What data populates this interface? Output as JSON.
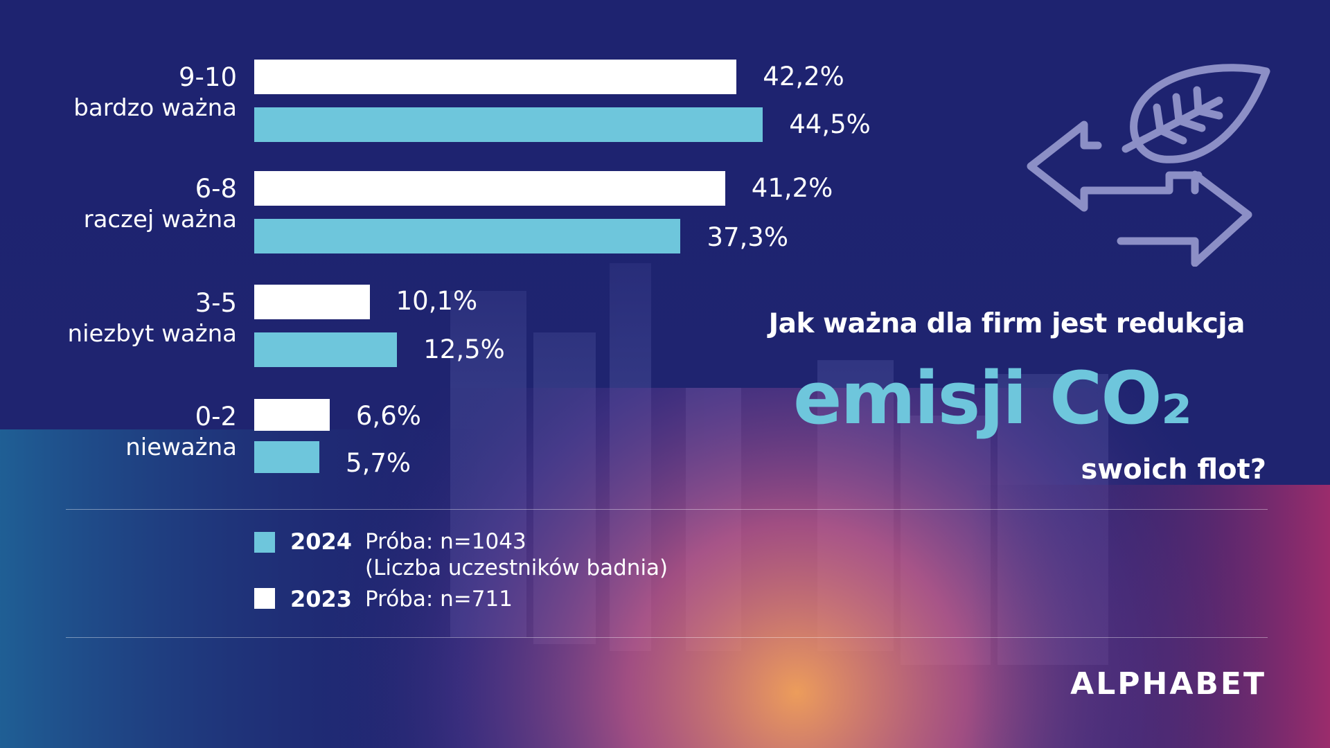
{
  "chart_data": {
    "type": "bar",
    "orientation": "horizontal",
    "categories": [
      {
        "range": "9-10",
        "label": "bardzo ważna"
      },
      {
        "range": "6-8",
        "label": "raczej ważna"
      },
      {
        "range": "3-5",
        "label": "niezbyt ważna"
      },
      {
        "range": "0-2",
        "label": "nieważna"
      }
    ],
    "series": [
      {
        "name": "2023",
        "color": "#ffffff",
        "values": [
          42.2,
          41.2,
          10.1,
          6.6
        ],
        "labels": [
          "42,2%",
          "41,2%",
          "10,1%",
          "6,6%"
        ]
      },
      {
        "name": "2024",
        "color": "#6ec6dc",
        "values": [
          44.5,
          37.3,
          12.5,
          5.7
        ],
        "labels": [
          "44,5%",
          "37,3%",
          "12,5%",
          "5,7%"
        ]
      }
    ],
    "title": {
      "line1": "Jak ważna dla firm jest redukcja",
      "line2": "emisji CO₂",
      "line3": "swoich flot?"
    },
    "xlim": [
      0,
      50
    ]
  },
  "legend": [
    {
      "year": "2024",
      "text1": "Próba: n=1043",
      "text2": "(Liczba uczestników badnia)",
      "color": "#6ec6dc"
    },
    {
      "year": "2023",
      "text1": "Próba: n=711",
      "text2": "",
      "color": "#ffffff"
    }
  ],
  "brand": "ALPHABET",
  "icon": "leaf-arrows-icon"
}
